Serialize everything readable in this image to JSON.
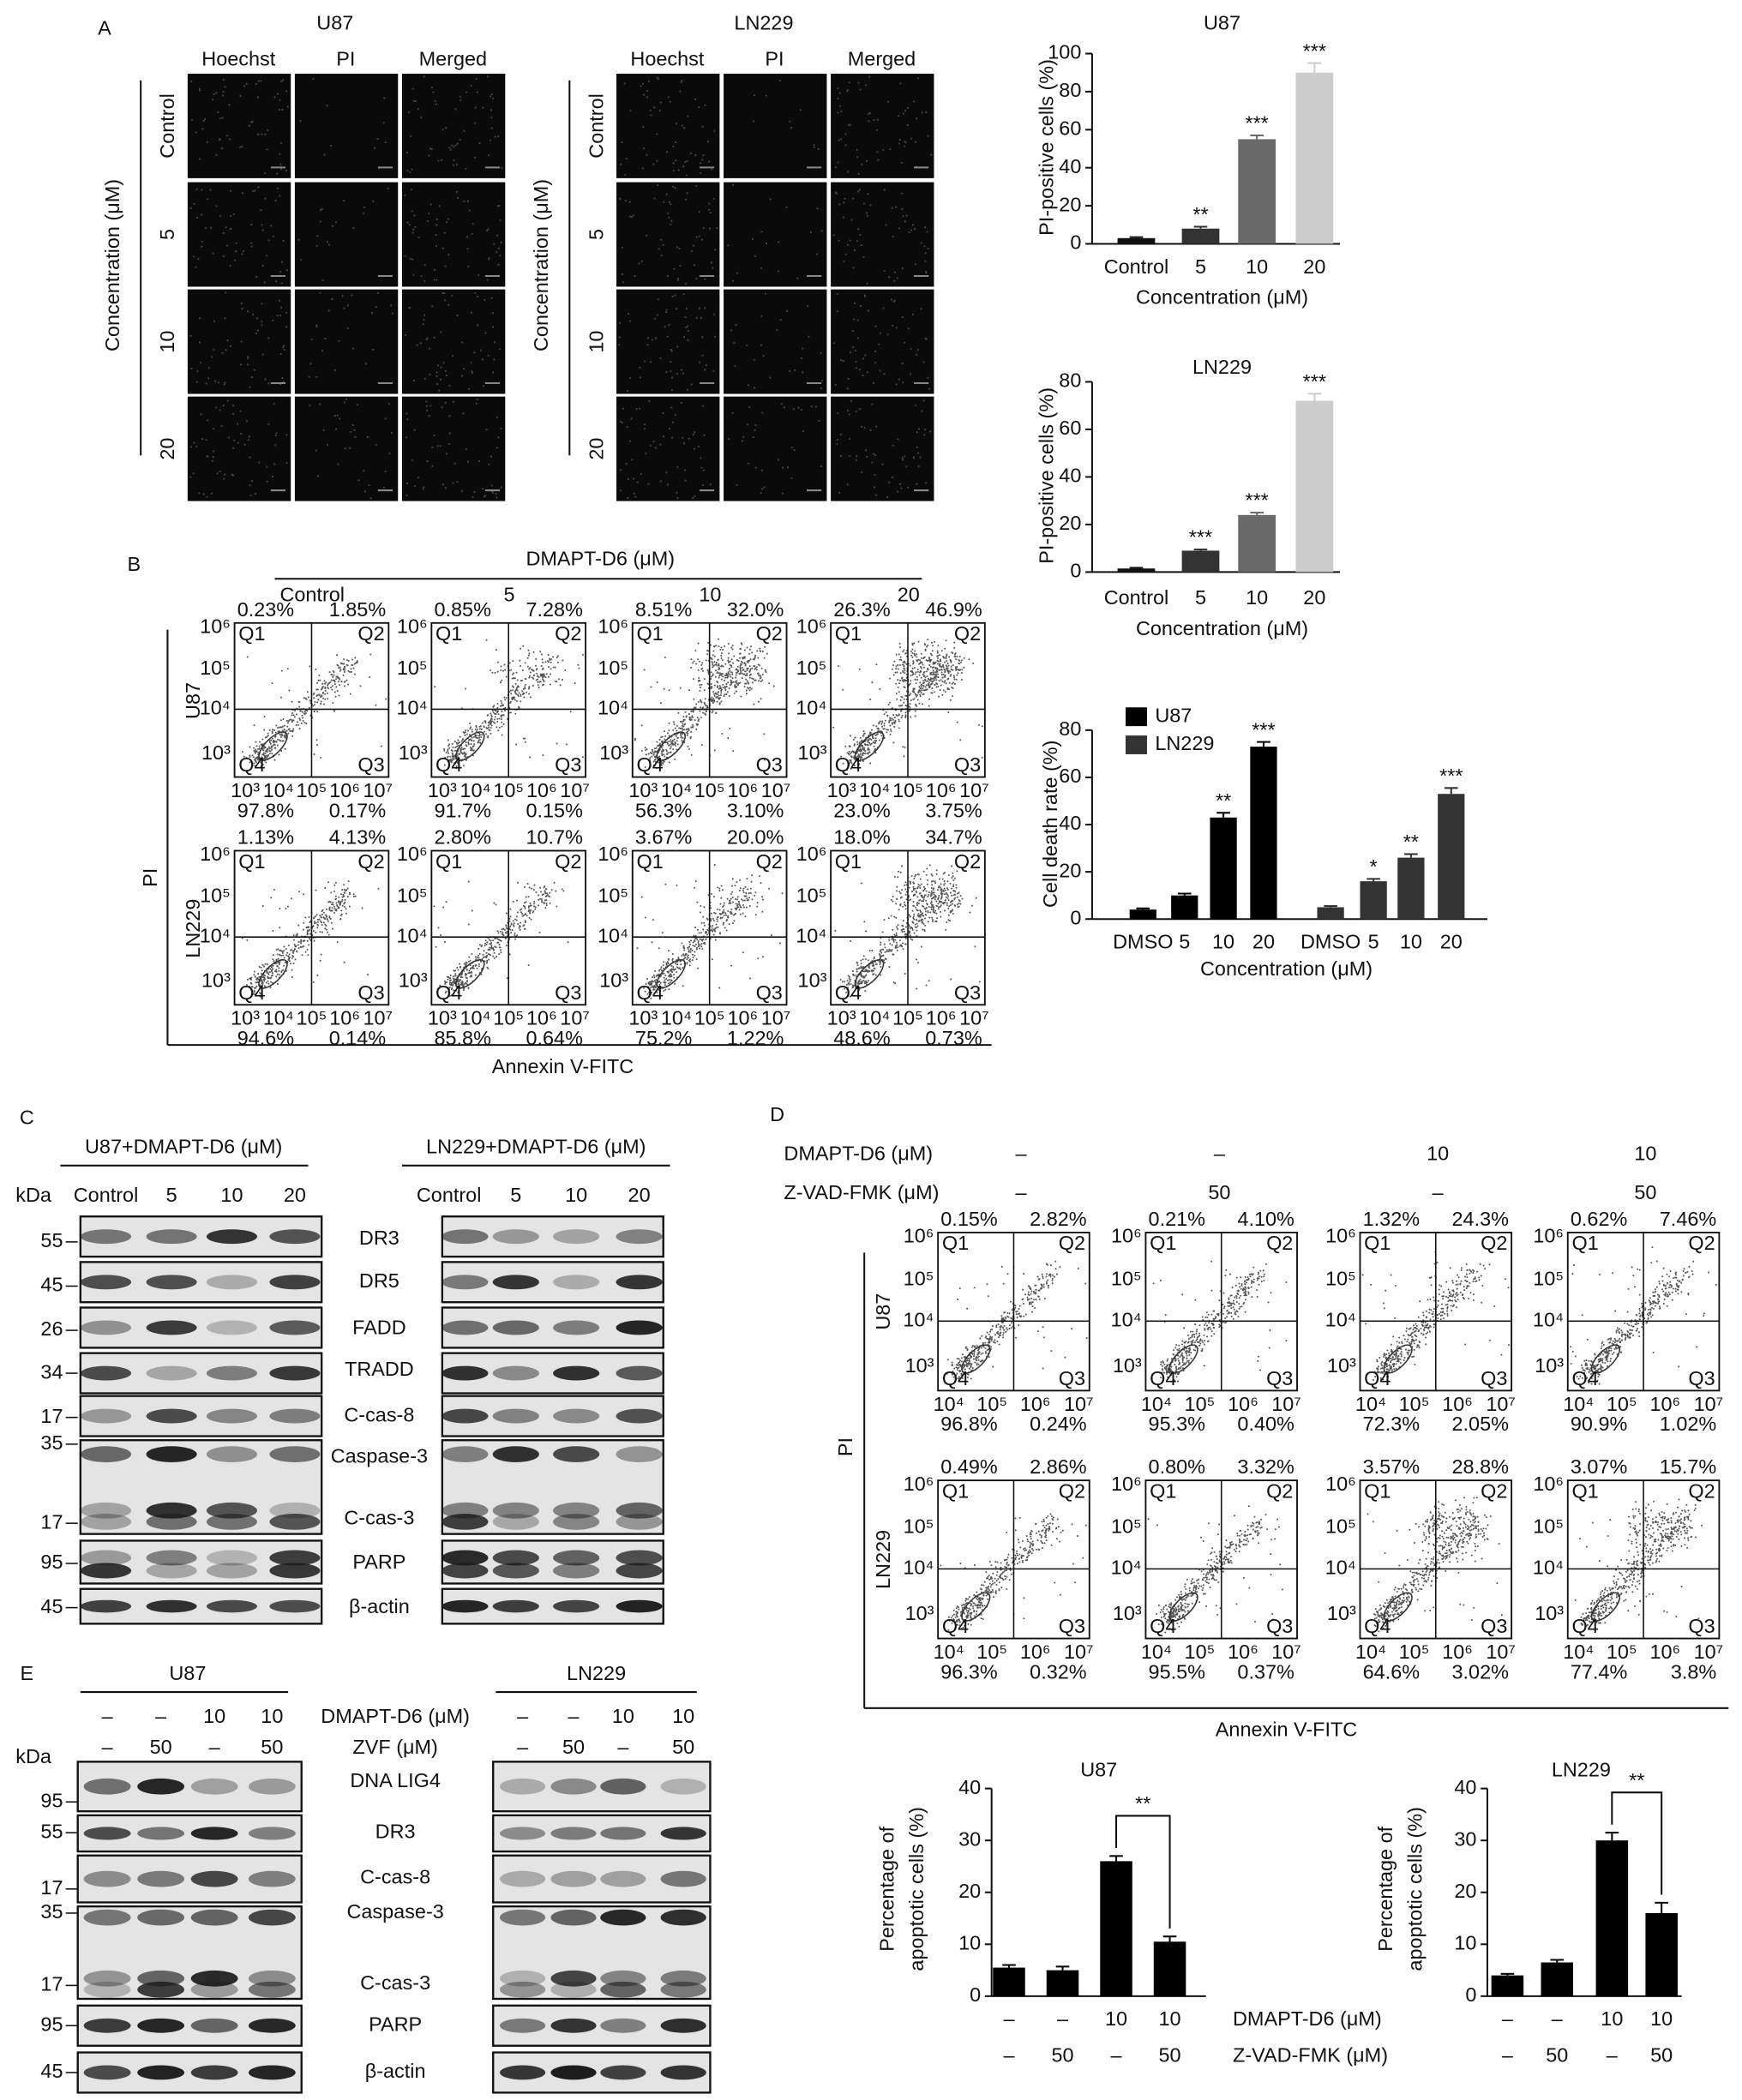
{
  "panel_labels": [
    "A",
    "B",
    "C",
    "D",
    "E"
  ],
  "panel_a": {
    "row_axis_label": "Concentration (μM)",
    "groups": [
      {
        "title": "U87",
        "columns": [
          "Hoechst",
          "PI",
          "Merged"
        ],
        "rows": [
          "Control",
          "5",
          "10",
          "20"
        ]
      },
      {
        "title": "LN229",
        "columns": [
          "Hoechst",
          "PI",
          "Merged"
        ],
        "rows": [
          "Control",
          "5",
          "10",
          "20"
        ]
      }
    ]
  },
  "chart_data": [
    {
      "type": "bar",
      "title": "U87",
      "ylabel": "PI-positive cells (%)",
      "xlabel": "Concentration (μM)",
      "categories": [
        "Control",
        "5",
        "10",
        "20"
      ],
      "values": [
        3,
        8,
        55,
        90
      ],
      "errors": [
        0.5,
        1,
        2,
        5
      ],
      "colors": [
        "#111111",
        "#333333",
        "#6a6a6a",
        "#cccccc"
      ],
      "ylim": [
        0,
        100
      ],
      "yticks": [
        0,
        20,
        40,
        60,
        80,
        100
      ],
      "annotations": [
        {
          "index": 1,
          "text": "**"
        },
        {
          "index": 2,
          "text": "***"
        },
        {
          "index": 3,
          "text": "***"
        }
      ]
    },
    {
      "type": "bar",
      "title": "LN229",
      "ylabel": "PI-positive cells (%)",
      "xlabel": "Concentration (μM)",
      "categories": [
        "Control",
        "5",
        "10",
        "20"
      ],
      "values": [
        1.5,
        9,
        24,
        72
      ],
      "errors": [
        0.3,
        0.5,
        1,
        3
      ],
      "colors": [
        "#111111",
        "#333333",
        "#6a6a6a",
        "#cccccc"
      ],
      "ylim": [
        0,
        80
      ],
      "yticks": [
        0,
        20,
        40,
        60,
        80
      ],
      "annotations": [
        {
          "index": 1,
          "text": "***"
        },
        {
          "index": 2,
          "text": "***"
        },
        {
          "index": 3,
          "text": "***"
        }
      ]
    },
    {
      "type": "bar",
      "ylabel": "Cell death rate (%)",
      "xlabel": "Concentration (μM)",
      "categories": [
        "DMSO",
        "5",
        "10",
        "20",
        "DMSO",
        "5",
        "10",
        "20"
      ],
      "series": [
        {
          "name": "U87",
          "color": "#000000",
          "values": [
            4,
            10,
            43,
            73,
            null,
            null,
            null,
            null
          ],
          "errors": [
            0.5,
            0.8,
            2,
            2,
            null,
            null,
            null,
            null
          ]
        },
        {
          "name": "LN229",
          "color": "#333333",
          "values": [
            null,
            null,
            null,
            null,
            5,
            16,
            26,
            53
          ],
          "errors": [
            null,
            null,
            null,
            null,
            0.5,
            1,
            1.5,
            2.5
          ]
        }
      ],
      "legend": "top-left",
      "ylim": [
        0,
        80
      ],
      "yticks": [
        0,
        20,
        40,
        60,
        80
      ],
      "annotations": [
        {
          "index": 2,
          "text": "**"
        },
        {
          "index": 3,
          "text": "***"
        },
        {
          "index": 5,
          "text": "*"
        },
        {
          "index": 6,
          "text": "**"
        },
        {
          "index": 7,
          "text": "***"
        }
      ]
    },
    {
      "type": "bar",
      "title": "U87",
      "ylabel": [
        "Percentage of",
        "apoptotic cells (%)"
      ],
      "categories": [
        [
          "–",
          "–"
        ],
        [
          "–",
          "50"
        ],
        [
          "10",
          "–"
        ],
        [
          "10",
          "50"
        ]
      ],
      "values": [
        5.5,
        5,
        26,
        10.5
      ],
      "errors": [
        0.5,
        0.7,
        1,
        1
      ],
      "color": "#000000",
      "ylim": [
        0,
        40
      ],
      "yticks": [
        0,
        10,
        20,
        30,
        40
      ],
      "bracket": {
        "from": 2,
        "to": 3,
        "text": "**"
      }
    },
    {
      "type": "bar",
      "title": "LN229",
      "ylabel": [
        "Percentage of",
        "apoptotic cells (%)"
      ],
      "categories": [
        [
          "–",
          "–"
        ],
        [
          "–",
          "50"
        ],
        [
          "10",
          "–"
        ],
        [
          "10",
          "50"
        ]
      ],
      "x_row_names": [
        "DMAPT-D6 (μM)",
        "Z-VAD-FMK (μM)"
      ],
      "values": [
        4,
        6.5,
        30,
        16
      ],
      "errors": [
        0.3,
        0.5,
        1.5,
        2
      ],
      "color": "#000000",
      "ylim": [
        0,
        40
      ],
      "yticks": [
        0,
        10,
        20,
        30,
        40
      ],
      "bracket": {
        "from": 2,
        "to": 3,
        "text": "**"
      }
    }
  ],
  "panel_b": {
    "title": "DMAPT-D6 (μM)",
    "conditions": [
      "Control",
      "5",
      "10",
      "20"
    ],
    "cell_lines": [
      "U87",
      "LN229"
    ],
    "y_label": "PI",
    "x_label": "Annexin V-FITC",
    "y_ticks": [
      "10⁶",
      "10⁵",
      "10⁴",
      "10³"
    ],
    "x_ticks": [
      "10³",
      "10⁴",
      "10⁵",
      "10⁶",
      "10⁷"
    ],
    "quadrants": [
      "Q1",
      "Q2",
      "Q4",
      "Q3"
    ],
    "plots": [
      [
        [
          "0.23%",
          "1.85%",
          "97.8%",
          "0.17%"
        ],
        [
          "0.85%",
          "7.28%",
          "91.7%",
          "0.15%"
        ],
        [
          "8.51%",
          "32.0%",
          "56.3%",
          "3.10%"
        ],
        [
          "26.3%",
          "46.9%",
          "23.0%",
          "3.75%"
        ]
      ],
      [
        [
          "1.13%",
          "4.13%",
          "94.6%",
          "0.14%"
        ],
        [
          "2.80%",
          "10.7%",
          "85.8%",
          "0.64%"
        ],
        [
          "3.67%",
          "20.0%",
          "75.2%",
          "1.22%"
        ],
        [
          "18.0%",
          "34.7%",
          "48.6%",
          "0.73%"
        ]
      ]
    ]
  },
  "panel_c": {
    "titles": [
      "U87+DMAPT-D6 (μM)",
      "LN229+DMAPT-D6 (μM)"
    ],
    "kda": "kDa",
    "lanes": [
      "Control",
      "5",
      "10",
      "20"
    ],
    "proteins": [
      "DR3",
      "DR5",
      "FADD",
      "TRADD",
      "C-cas-8",
      "Caspase-3",
      "C-cas-3",
      "PARP",
      "β-actin"
    ],
    "markers": [
      "55",
      "45",
      "26",
      "34",
      "17",
      "35",
      "17",
      "95",
      "45"
    ]
  },
  "panel_d": {
    "treatments": [
      {
        "name": "DMAPT-D6 (μM)",
        "values": [
          "–",
          "–",
          "10",
          "10"
        ]
      },
      {
        "name": "Z-VAD-FMK (μM)",
        "values": [
          "–",
          "50",
          "–",
          "50"
        ]
      }
    ],
    "cell_lines": [
      "U87",
      "LN229"
    ],
    "y_label": "PI",
    "x_label": "Annexin V-FITC",
    "y_ticks": [
      "10⁶",
      "10⁵",
      "10⁴",
      "10³"
    ],
    "x_ticks": [
      "10⁴",
      "10⁵",
      "10⁶",
      "10⁷"
    ],
    "quadrants": [
      "Q1",
      "Q2",
      "Q4",
      "Q3"
    ],
    "plots": [
      [
        [
          "0.15%",
          "2.82%",
          "96.8%",
          "0.24%"
        ],
        [
          "0.21%",
          "4.10%",
          "95.3%",
          "0.40%"
        ],
        [
          "1.32%",
          "24.3%",
          "72.3%",
          "2.05%"
        ],
        [
          "0.62%",
          "7.46%",
          "90.9%",
          "1.02%"
        ]
      ],
      [
        [
          "0.49%",
          "2.86%",
          "96.3%",
          "0.32%"
        ],
        [
          "0.80%",
          "3.32%",
          "95.5%",
          "0.37%"
        ],
        [
          "3.57%",
          "28.8%",
          "64.6%",
          "3.02%"
        ],
        [
          "3.07%",
          "15.7%",
          "77.4%",
          "3.8%"
        ]
      ]
    ]
  },
  "panel_e": {
    "titles": [
      "U87",
      "LN229"
    ],
    "kda": "kDa",
    "treatments": [
      {
        "name": "DMAPT-D6 (μM)",
        "values": [
          "–",
          "–",
          "10",
          "10"
        ]
      },
      {
        "name": "ZVF (μM)",
        "values": [
          "–",
          "50",
          "–",
          "50"
        ]
      }
    ],
    "proteins": [
      "DNA LIG4",
      "DR3",
      "C-cas-8",
      "Caspase-3",
      "C-cas-3",
      "PARP",
      "β-actin"
    ],
    "markers": [
      "95",
      "55",
      "17",
      "35",
      "17",
      "95",
      "45"
    ]
  }
}
